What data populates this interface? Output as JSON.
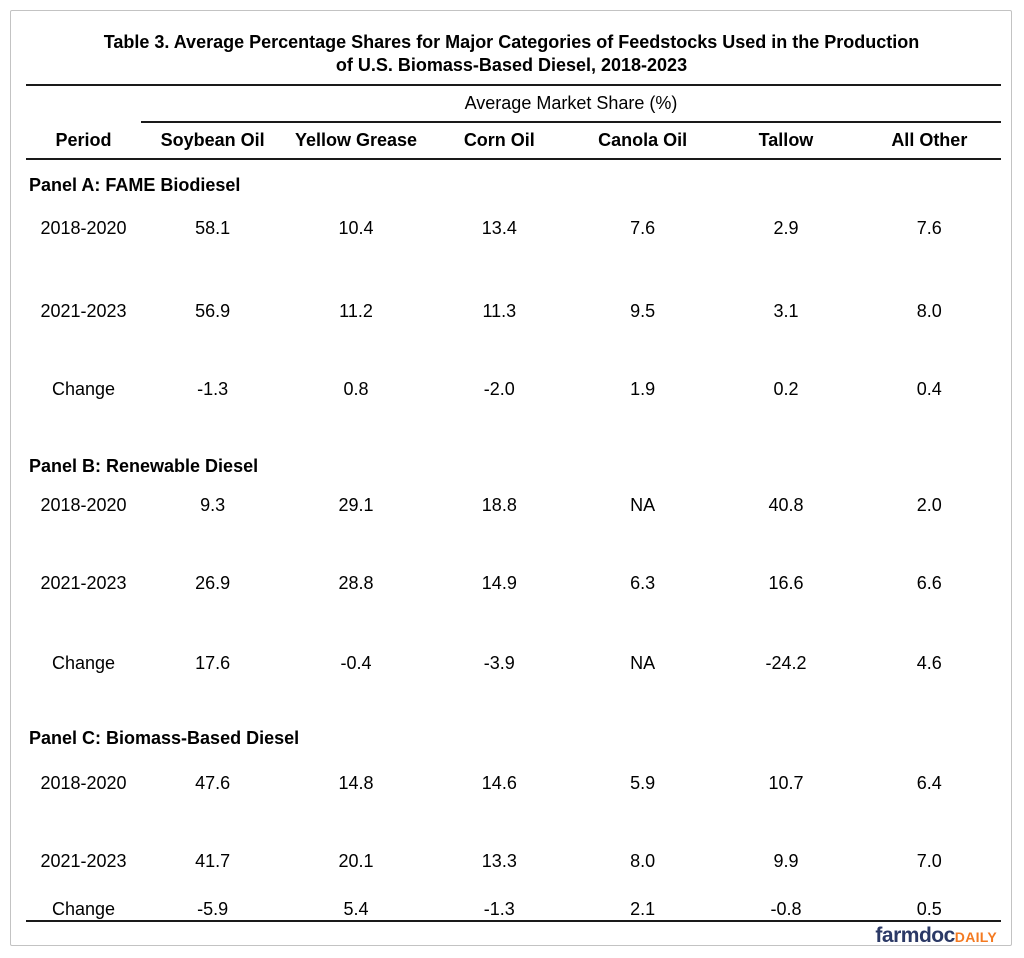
{
  "title": {
    "line1": "Table 3. Average Percentage Shares for Major Categories of Feedstocks Used in the Production",
    "line2": "of U.S. Biomass-Based Diesel, 2018-2023"
  },
  "table": {
    "group_header": "Average Market Share (%)",
    "columns": [
      "Period",
      "Soybean Oil",
      "Yellow Grease",
      "Corn Oil",
      "Canola Oil",
      "Tallow",
      "All Other"
    ],
    "panels": [
      {
        "label": "Panel A: FAME Biodiesel",
        "rows": [
          {
            "period": "2018-2020",
            "values": [
              "58.1",
              "10.4",
              "13.4",
              "7.6",
              "2.9",
              "7.6"
            ]
          },
          {
            "period": "2021-2023",
            "values": [
              "56.9",
              "11.2",
              "11.3",
              "9.5",
              "3.1",
              "8.0"
            ]
          },
          {
            "period": "Change",
            "values": [
              "-1.3",
              "0.8",
              "-2.0",
              "1.9",
              "0.2",
              "0.4"
            ]
          }
        ]
      },
      {
        "label": "Panel B: Renewable Diesel",
        "rows": [
          {
            "period": "2018-2020",
            "values": [
              "9.3",
              "29.1",
              "18.8",
              "NA",
              "40.8",
              "2.0"
            ]
          },
          {
            "period": "2021-2023",
            "values": [
              "26.9",
              "28.8",
              "14.9",
              "6.3",
              "16.6",
              "6.6"
            ]
          },
          {
            "period": "Change",
            "values": [
              "17.6",
              "-0.4",
              "-3.9",
              "NA",
              "-24.2",
              "4.6"
            ]
          }
        ]
      },
      {
        "label": "Panel C: Biomass-Based Diesel",
        "rows": [
          {
            "period": "2018-2020",
            "values": [
              "47.6",
              "14.8",
              "14.6",
              "5.9",
              "10.7",
              "6.4"
            ]
          },
          {
            "period": "2021-2023",
            "values": [
              "41.7",
              "20.1",
              "13.3",
              "8.0",
              "9.9",
              "7.0"
            ]
          },
          {
            "period": "Change",
            "values": [
              "-5.9",
              "5.4",
              "-1.3",
              "2.1",
              "-0.8",
              "0.5"
            ]
          }
        ]
      }
    ]
  },
  "logo": {
    "brand": "farmdoc",
    "suffix": "DAILY",
    "brand_color": "#2b3966",
    "suffix_color": "#f47a21"
  },
  "chart_data": {
    "type": "table",
    "title": "Table 3. Average Percentage Shares for Major Categories of Feedstocks Used in the Production of U.S. Biomass-Based Diesel, 2018-2023",
    "group_header": "Average Market Share (%)",
    "columns": [
      "Period",
      "Soybean Oil",
      "Yellow Grease",
      "Corn Oil",
      "Canola Oil",
      "Tallow",
      "All Other"
    ],
    "panels": [
      {
        "name": "Panel A: FAME Biodiesel",
        "rows": [
          {
            "period": "2018-2020",
            "soybean_oil": 58.1,
            "yellow_grease": 10.4,
            "corn_oil": 13.4,
            "canola_oil": 7.6,
            "tallow": 2.9,
            "all_other": 7.6
          },
          {
            "period": "2021-2023",
            "soybean_oil": 56.9,
            "yellow_grease": 11.2,
            "corn_oil": 11.3,
            "canola_oil": 9.5,
            "tallow": 3.1,
            "all_other": 8.0
          },
          {
            "period": "Change",
            "soybean_oil": -1.3,
            "yellow_grease": 0.8,
            "corn_oil": -2.0,
            "canola_oil": 1.9,
            "tallow": 0.2,
            "all_other": 0.4
          }
        ]
      },
      {
        "name": "Panel B: Renewable Diesel",
        "rows": [
          {
            "period": "2018-2020",
            "soybean_oil": 9.3,
            "yellow_grease": 29.1,
            "corn_oil": 18.8,
            "canola_oil": "NA",
            "tallow": 40.8,
            "all_other": 2.0
          },
          {
            "period": "2021-2023",
            "soybean_oil": 26.9,
            "yellow_grease": 28.8,
            "corn_oil": 14.9,
            "canola_oil": 6.3,
            "tallow": 16.6,
            "all_other": 6.6
          },
          {
            "period": "Change",
            "soybean_oil": 17.6,
            "yellow_grease": -0.4,
            "corn_oil": -3.9,
            "canola_oil": "NA",
            "tallow": -24.2,
            "all_other": 4.6
          }
        ]
      },
      {
        "name": "Panel C: Biomass-Based Diesel",
        "rows": [
          {
            "period": "2018-2020",
            "soybean_oil": 47.6,
            "yellow_grease": 14.8,
            "corn_oil": 14.6,
            "canola_oil": 5.9,
            "tallow": 10.7,
            "all_other": 6.4
          },
          {
            "period": "2021-2023",
            "soybean_oil": 41.7,
            "yellow_grease": 20.1,
            "corn_oil": 13.3,
            "canola_oil": 8.0,
            "tallow": 9.9,
            "all_other": 7.0
          },
          {
            "period": "Change",
            "soybean_oil": -5.9,
            "yellow_grease": 5.4,
            "corn_oil": -1.3,
            "canola_oil": 2.1,
            "tallow": -0.8,
            "all_other": 0.5
          }
        ]
      }
    ]
  }
}
